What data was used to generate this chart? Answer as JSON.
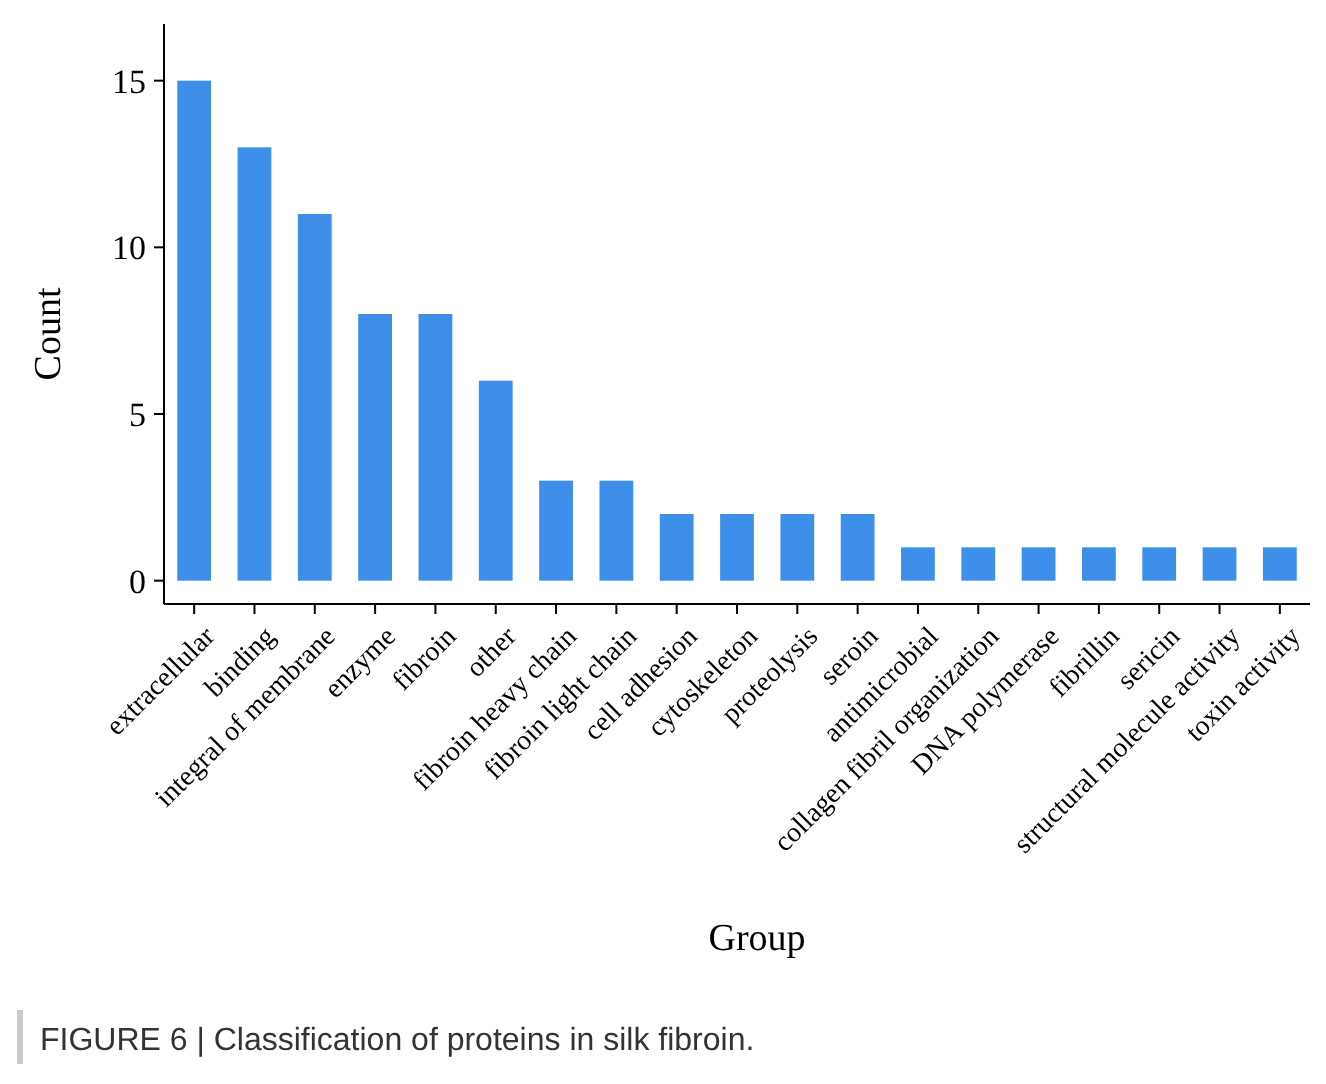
{
  "chart_data": {
    "type": "bar",
    "xlabel": "Group",
    "ylabel": "Count",
    "categories": [
      "extracellular",
      "binding",
      "integral of membrane",
      "enzyme",
      "fibroin",
      "other",
      "fibroin heavy chain",
      "fibroin light chain",
      "cell adhesion",
      "cytoskeleton",
      "proteolysis",
      "seroin",
      "antimicrobial",
      "collagen fibril organization",
      "DNA polymerase",
      "fibrillin",
      "sericin",
      "structural molecule activity",
      "toxin activity"
    ],
    "values": [
      15,
      13,
      11,
      8,
      8,
      6,
      3,
      3,
      2,
      2,
      2,
      2,
      1,
      1,
      1,
      1,
      1,
      1,
      1
    ],
    "color": "#3d8fe9",
    "ylim": [
      -0.7,
      16.7
    ],
    "yticks": [
      0,
      5,
      10,
      15
    ],
    "grid": false,
    "annotations": [
      "FIGURE 6 | Classification of proteins in silk fibroin."
    ]
  }
}
